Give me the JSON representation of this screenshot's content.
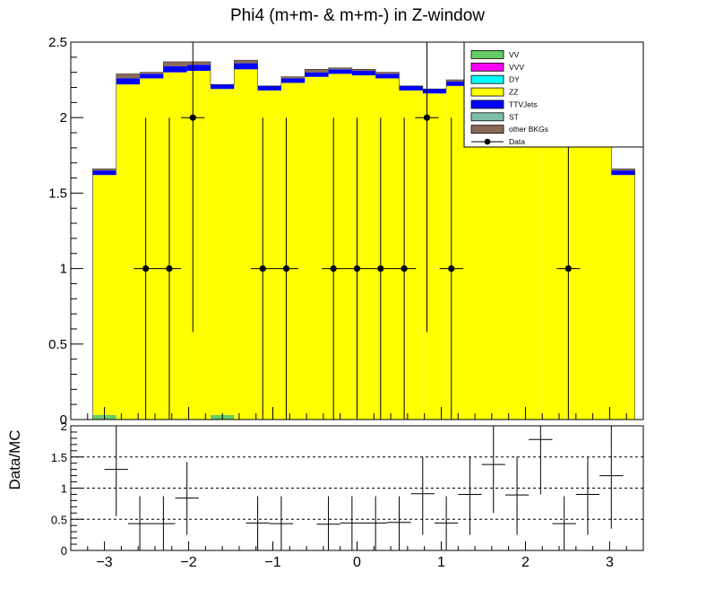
{
  "title": "Phi4 (m+m- & m+m-) in Z-window",
  "ratio_ylabel": "Data/MC",
  "chart_data": [
    {
      "type": "bar",
      "subtype": "stacked-histogram",
      "xlim": [
        -3.4,
        3.4
      ],
      "ylim": [
        0,
        2.5
      ],
      "yticks": [
        "0",
        "0.5",
        "1",
        "1.5",
        "2",
        "2.5"
      ],
      "bin_edges": [
        -3.14,
        -2.86,
        -2.58,
        -2.3,
        -2.02,
        -1.74,
        -1.46,
        -1.18,
        -0.9,
        -0.62,
        -0.34,
        -0.06,
        0.22,
        0.5,
        0.78,
        1.06,
        1.34,
        1.62,
        1.9,
        2.18,
        2.46,
        2.74,
        3.02,
        3.3
      ],
      "series": [
        {
          "name": "VV",
          "color": "#66cc66",
          "values": [
            0.03,
            0,
            0,
            0,
            0,
            0.03,
            0,
            0,
            0,
            0,
            0,
            0,
            0,
            0,
            0,
            0,
            0,
            0,
            0,
            0,
            0,
            0,
            0
          ]
        },
        {
          "name": "VVV",
          "color": "#ff00ff",
          "values": [
            0,
            0,
            0,
            0,
            0,
            0,
            0,
            0,
            0,
            0,
            0,
            0,
            0,
            0,
            0,
            0,
            0,
            0,
            0,
            0,
            0,
            0,
            0
          ]
        },
        {
          "name": "DY",
          "color": "#00ffff",
          "values": [
            0,
            0,
            0,
            0,
            0,
            0,
            0,
            0,
            0,
            0,
            0,
            0,
            0,
            0,
            0,
            0,
            0,
            0,
            0,
            0,
            0,
            0,
            0
          ]
        },
        {
          "name": "ZZ",
          "color": "#ffff00",
          "values": [
            1.59,
            2.22,
            2.26,
            2.3,
            2.31,
            2.16,
            2.32,
            2.18,
            2.23,
            2.27,
            2.29,
            2.28,
            2.26,
            2.18,
            2.16,
            2.21,
            2.19,
            2.18,
            2.17,
            2.16,
            2.15,
            2.16,
            1.62
          ]
        },
        {
          "name": "TTVJets",
          "color": "#0000ff",
          "values": [
            0.03,
            0.04,
            0.03,
            0.04,
            0.04,
            0.03,
            0.04,
            0.03,
            0.03,
            0.03,
            0.03,
            0.03,
            0.03,
            0.03,
            0.03,
            0.03,
            0.03,
            0.03,
            0.03,
            0.03,
            0.03,
            0.03,
            0.03
          ]
        },
        {
          "name": "ST",
          "color": "#7fbfa8",
          "values": [
            0,
            0,
            0,
            0,
            0,
            0,
            0,
            0,
            0,
            0,
            0,
            0,
            0,
            0,
            0,
            0,
            0,
            0,
            0,
            0,
            0,
            0,
            0
          ]
        },
        {
          "name": "other BKGs",
          "color": "#8b6a5a",
          "values": [
            0.01,
            0.03,
            0.01,
            0.03,
            0.02,
            0.0,
            0.02,
            0.0,
            0.01,
            0.02,
            0.01,
            0.01,
            0.01,
            0.0,
            0.0,
            0.01,
            0.0,
            0.0,
            0.0,
            0.0,
            0.0,
            0.0,
            0.01
          ]
        }
      ],
      "data_points": {
        "name": "Data",
        "x": [
          -2.51,
          -2.23,
          -1.95,
          -1.12,
          -0.84,
          -0.28,
          0.0,
          0.28,
          0.56,
          0.83,
          1.12,
          2.51
        ],
        "y": [
          1,
          1,
          2,
          1,
          1,
          1,
          1,
          1,
          1,
          2,
          1,
          1
        ],
        "yerr": [
          1.0,
          1.0,
          1.42,
          1.0,
          1.0,
          1.0,
          1.0,
          1.0,
          1.0,
          1.42,
          1.0,
          1.0
        ]
      },
      "legend_position": "top-right"
    },
    {
      "type": "scatter",
      "subtype": "ratio",
      "xlim": [
        -3.4,
        3.4
      ],
      "ylim": [
        0,
        2
      ],
      "xticks": [
        "−3",
        "−2",
        "−1",
        "0",
        "1",
        "2",
        "3"
      ],
      "yticks": [
        "0",
        "0.5",
        "1",
        "1.5",
        "2"
      ],
      "reference_lines": [
        0.5,
        1,
        1.5
      ],
      "points": [
        {
          "x": -2.86,
          "y": 1.3,
          "ylo": 0.55,
          "yhi": 2.0
        },
        {
          "x": -2.58,
          "y": 0.43,
          "ylo": 0.0,
          "yhi": 0.87
        },
        {
          "x": -2.3,
          "y": 0.43,
          "ylo": 0.0,
          "yhi": 0.87
        },
        {
          "x": -2.02,
          "y": 0.84,
          "ylo": 0.25,
          "yhi": 1.42
        },
        {
          "x": -1.18,
          "y": 0.44,
          "ylo": 0.0,
          "yhi": 0.87
        },
        {
          "x": -0.9,
          "y": 0.43,
          "ylo": 0.0,
          "yhi": 0.87
        },
        {
          "x": -0.34,
          "y": 0.42,
          "ylo": 0.0,
          "yhi": 0.87
        },
        {
          "x": -0.06,
          "y": 0.44,
          "ylo": 0.0,
          "yhi": 0.87
        },
        {
          "x": 0.22,
          "y": 0.44,
          "ylo": 0.0,
          "yhi": 0.87
        },
        {
          "x": 0.5,
          "y": 0.45,
          "ylo": 0.0,
          "yhi": 0.87
        },
        {
          "x": 0.78,
          "y": 0.91,
          "ylo": 0.25,
          "yhi": 1.5
        },
        {
          "x": 1.06,
          "y": 0.44,
          "ylo": 0.0,
          "yhi": 0.87
        },
        {
          "x": 1.34,
          "y": 0.9,
          "ylo": 0.25,
          "yhi": 1.5
        },
        {
          "x": 1.62,
          "y": 1.38,
          "ylo": 0.6,
          "yhi": 2.0
        },
        {
          "x": 1.9,
          "y": 0.89,
          "ylo": 0.25,
          "yhi": 1.5
        },
        {
          "x": 2.18,
          "y": 1.78,
          "ylo": 0.9,
          "yhi": 2.0
        },
        {
          "x": 2.46,
          "y": 0.43,
          "ylo": 0.0,
          "yhi": 0.87
        },
        {
          "x": 2.74,
          "y": 0.9,
          "ylo": 0.25,
          "yhi": 1.5
        },
        {
          "x": 3.02,
          "y": 1.2,
          "ylo": 0.35,
          "yhi": 2.0
        }
      ]
    }
  ]
}
